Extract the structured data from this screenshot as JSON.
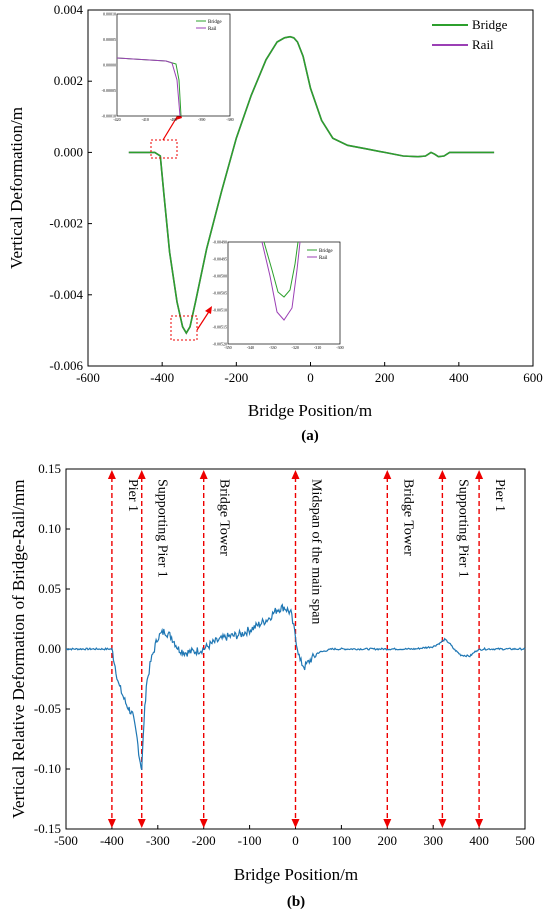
{
  "chart_data": [
    {
      "type": "line",
      "caption": "(a)",
      "xlabel": "Bridge Position/m",
      "ylabel": "Vertical Deformation/m",
      "xlim": [
        -600,
        600
      ],
      "ylim": [
        -0.006,
        0.004
      ],
      "xticks": [
        "-600",
        "-400",
        "-200",
        "0",
        "200",
        "400",
        "600"
      ],
      "yticks": [
        "0.004",
        "0.002",
        "0.000",
        "-0.002",
        "-0.004",
        "-0.006"
      ],
      "legend_position": "top-right",
      "series": [
        {
          "name": "Bridge",
          "color": "#2ca02c",
          "x": [
            -490,
            -420,
            -405,
            -395,
            -380,
            -360,
            -345,
            -335,
            -325,
            -310,
            -280,
            -240,
            -200,
            -160,
            -120,
            -90,
            -70,
            -55,
            -45,
            -35,
            -20,
            0,
            30,
            60,
            100,
            150,
            200,
            250,
            290,
            310,
            325,
            335,
            345,
            360,
            375,
            390,
            420,
            495
          ],
          "y": [
            0.0,
            0.0,
            -0.0001,
            -0.0012,
            -0.0028,
            -0.0042,
            -0.0049,
            -0.00507,
            -0.0049,
            -0.0042,
            -0.0027,
            -0.0011,
            0.0004,
            0.0016,
            0.0026,
            0.0031,
            0.00322,
            0.00325,
            0.00322,
            0.0031,
            0.0027,
            0.0018,
            0.0009,
            0.0004,
            0.0002,
            0.0001,
            0.0,
            -0.0001,
            -0.00012,
            -0.0001,
            0.0,
            -5e-05,
            -0.00012,
            -0.0001,
            0.0,
            0.0,
            0.0,
            0.0
          ]
        },
        {
          "name": "Rail",
          "color": "#9b3fb5",
          "x": [
            -490,
            -420,
            -405,
            -395,
            -380,
            -360,
            -345,
            -335,
            -325,
            -310,
            -280,
            -240,
            -200,
            -160,
            -120,
            -90,
            -70,
            -55,
            -45,
            -35,
            -20,
            0,
            30,
            60,
            100,
            150,
            200,
            250,
            290,
            310,
            325,
            335,
            345,
            360,
            375,
            390,
            420,
            495
          ],
          "y": [
            0.0,
            0.0,
            -0.0001,
            -0.0012,
            -0.0028,
            -0.0042,
            -0.0049,
            -0.00508,
            -0.0049,
            -0.0042,
            -0.0027,
            -0.0011,
            0.0004,
            0.0016,
            0.0026,
            0.0031,
            0.00322,
            0.00325,
            0.00322,
            0.0031,
            0.0027,
            0.0018,
            0.0009,
            0.0004,
            0.0002,
            0.0001,
            0.0,
            -0.0001,
            -0.00012,
            -0.0001,
            0.0,
            -5e-05,
            -0.00012,
            -0.0001,
            0.0,
            0.0,
            0.0,
            0.0
          ]
        }
      ],
      "insets": [
        {
          "xticks": [
            "-420",
            "-410",
            "-400",
            "-390",
            "-380"
          ],
          "yticks": [
            "0.00010",
            "0.00005",
            "0.00000",
            "-0.00005",
            "-0.00010"
          ],
          "legend": [
            "Bridge",
            "Rail"
          ]
        },
        {
          "xticks": [
            "-350",
            "-340",
            "-330",
            "-320",
            "-310",
            "-300"
          ],
          "yticks": [
            "-0.00490",
            "-0.00495",
            "-0.00500",
            "-0.00505",
            "-0.00510",
            "-0.00515",
            "-0.00520"
          ],
          "legend": [
            "Bridge",
            "Rail"
          ]
        }
      ]
    },
    {
      "type": "line",
      "caption": "(b)",
      "xlabel": "Bridge Position/m",
      "ylabel": "Vertical Relative Deformation of Bridge-Rail/mm",
      "xlim": [
        -500,
        500
      ],
      "ylim": [
        -0.15,
        0.15
      ],
      "xticks": [
        "-500",
        "-400",
        "-300",
        "-200",
        "-100",
        "0",
        "100",
        "200",
        "300",
        "400",
        "500"
      ],
      "yticks": [
        "0.15",
        "0.10",
        "0.05",
        "0.00",
        "-0.05",
        "-0.10",
        "-0.15"
      ],
      "series": [
        {
          "color": "#1f77b4",
          "x": [
            -500,
            -410,
            -400,
            -395,
            -385,
            -370,
            -355,
            -345,
            -340,
            -335,
            -330,
            -325,
            -315,
            -300,
            -285,
            -270,
            -255,
            -240,
            -220,
            -200,
            -180,
            -150,
            -120,
            -90,
            -60,
            -40,
            -25,
            -10,
            0,
            10,
            20,
            30,
            50,
            80,
            120,
            200,
            260,
            300,
            315,
            325,
            335,
            345,
            360,
            380,
            395,
            410,
            500
          ],
          "y": [
            0.0,
            0.0,
            0.0,
            -0.01,
            -0.03,
            -0.045,
            -0.055,
            -0.075,
            -0.09,
            -0.1,
            -0.06,
            -0.03,
            -0.01,
            0.01,
            0.015,
            0.01,
            0.0,
            -0.003,
            -0.002,
            0.0,
            0.005,
            0.01,
            0.012,
            0.018,
            0.025,
            0.033,
            0.035,
            0.03,
            0.01,
            -0.01,
            -0.015,
            -0.01,
            -0.003,
            0.0,
            0.0,
            0.0,
            0.0,
            0.002,
            0.005,
            0.008,
            0.005,
            0.0,
            -0.005,
            -0.006,
            -0.001,
            0.0,
            0.0
          ]
        }
      ],
      "markers": [
        {
          "x": -400,
          "label": "Pier 1"
        },
        {
          "x": -335,
          "label": "Supporting Pier 1"
        },
        {
          "x": -200,
          "label": "Bridge Tower"
        },
        {
          "x": 0,
          "label": "Midspan of the main span"
        },
        {
          "x": 200,
          "label": "Bridge Tower"
        },
        {
          "x": 320,
          "label": "Supporting Pier 1"
        },
        {
          "x": 400,
          "label": "Pier 1"
        }
      ]
    }
  ]
}
